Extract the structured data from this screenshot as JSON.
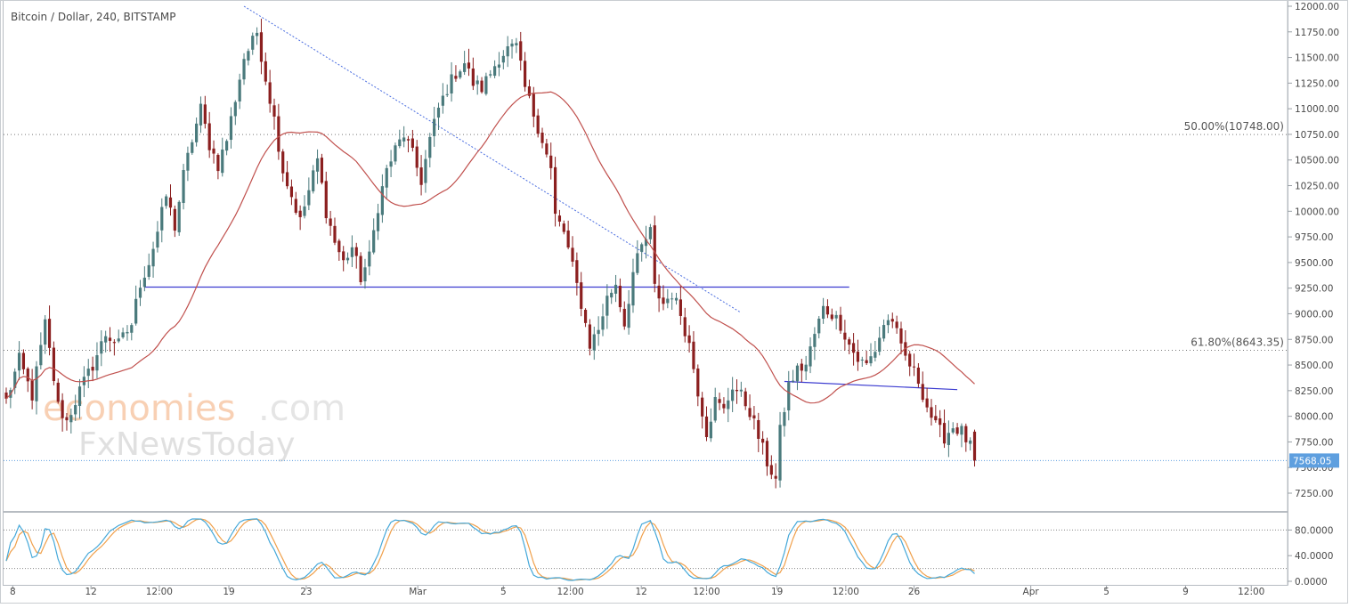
{
  "title": "Bitcoin / Dollar, 240, BITSTAMP",
  "watermark": {
    "brand_main": "economies",
    "brand_tld": ".com",
    "secondary": "FxNewsToday"
  },
  "colors": {
    "bull": "#4a7a7c",
    "bear": "#8b1f1f",
    "ma": "#c0504d",
    "hline": "#3b3bd0",
    "trend": "#4a6de0",
    "fib": "#777777",
    "stoch_k": "#45a8d9",
    "stoch_d": "#f0a04b",
    "price_tag_bg": "#5e9fdf",
    "price_tag_text": "#ffffff"
  },
  "chart_data": {
    "type": "candlestick",
    "title": "Bitcoin / Dollar, 240, BITSTAMP",
    "interval": "240",
    "exchange": "BITSTAMP",
    "y_ticks": [
      "12000.00",
      "11750.00",
      "11500.00",
      "11250.00",
      "11000.00",
      "10750.00",
      "10500.00",
      "10250.00",
      "10000.00",
      "9750.00",
      "9500.00",
      "9250.00",
      "9000.00",
      "8750.00",
      "8500.00",
      "8250.00",
      "8000.00",
      "7750.00",
      "7500.00",
      "7250.00"
    ],
    "ylim": [
      7100,
      12000
    ],
    "last_price": "7568.05",
    "last_price_value": 7568.05,
    "fib_levels": [
      {
        "label": "50.00%(10748.00)",
        "value": 10748.0
      },
      {
        "label": "61.80%(8643.35)",
        "value": 8643.35
      }
    ],
    "support_lines": [
      {
        "price": 9260,
        "from_index": 32,
        "to_index": 195
      },
      {
        "price_start": 8340,
        "price_end": 8260,
        "from_index": 180,
        "to_index": 220
      }
    ],
    "trendline": {
      "from_index": 55,
      "from_price": 12000,
      "to_index": 170,
      "to_price": 9010
    },
    "x_ticks": [
      {
        "label": "8",
        "index": 1.5
      },
      {
        "label": "12",
        "index": 19.6
      },
      {
        "label": "12:00",
        "index": 35.4
      },
      {
        "label": "19",
        "index": 51.5
      },
      {
        "label": "23",
        "index": 69.4
      },
      {
        "label": "Mar",
        "index": 95.2
      },
      {
        "label": "5",
        "index": 115.0
      },
      {
        "label": "12:00",
        "index": 130.5
      },
      {
        "label": "12",
        "index": 146.9
      },
      {
        "label": "12:00",
        "index": 162.0
      },
      {
        "label": "19",
        "index": 178.3
      },
      {
        "label": "12:00",
        "index": 194.2
      },
      {
        "label": "26",
        "index": 210.0
      },
      {
        "label": "Apr",
        "index": 237.0
      },
      {
        "label": "5",
        "index": 254.5
      },
      {
        "label": "9",
        "index": 272.8
      },
      {
        "label": "12:00",
        "index": 288.0
      }
    ],
    "anchors": [
      [
        0,
        8150
      ],
      [
        3,
        8550
      ],
      [
        6,
        8200
      ],
      [
        9,
        8900
      ],
      [
        12,
        8100
      ],
      [
        14,
        7950
      ],
      [
        17,
        8250
      ],
      [
        20,
        8500
      ],
      [
        23,
        8800
      ],
      [
        26,
        8700
      ],
      [
        29,
        8900
      ],
      [
        31,
        9300
      ],
      [
        33,
        9500
      ],
      [
        35,
        9800
      ],
      [
        37,
        10150
      ],
      [
        39,
        9850
      ],
      [
        41,
        10350
      ],
      [
        43,
        10700
      ],
      [
        45,
        11000
      ],
      [
        47,
        10650
      ],
      [
        49,
        10450
      ],
      [
        51,
        10700
      ],
      [
        53,
        11100
      ],
      [
        55,
        11500
      ],
      [
        57,
        11650
      ],
      [
        58,
        11750
      ],
      [
        60,
        11300
      ],
      [
        62,
        10900
      ],
      [
        64,
        10400
      ],
      [
        66,
        10150
      ],
      [
        68,
        9900
      ],
      [
        70,
        10200
      ],
      [
        72,
        10500
      ],
      [
        74,
        10000
      ],
      [
        76,
        9700
      ],
      [
        78,
        9500
      ],
      [
        80,
        9650
      ],
      [
        82,
        9350
      ],
      [
        84,
        9550
      ],
      [
        86,
        10050
      ],
      [
        88,
        10400
      ],
      [
        90,
        10600
      ],
      [
        92,
        10750
      ],
      [
        94,
        10550
      ],
      [
        96,
        10300
      ],
      [
        98,
        10700
      ],
      [
        100,
        11000
      ],
      [
        102,
        11200
      ],
      [
        104,
        11350
      ],
      [
        106,
        11450
      ],
      [
        108,
        11250
      ],
      [
        110,
        11200
      ],
      [
        112,
        11350
      ],
      [
        114,
        11500
      ],
      [
        116,
        11580
      ],
      [
        118,
        11600
      ],
      [
        120,
        11200
      ],
      [
        122,
        10950
      ],
      [
        124,
        10700
      ],
      [
        126,
        10400
      ],
      [
        127,
        9950
      ],
      [
        129,
        9800
      ],
      [
        131,
        9450
      ],
      [
        133,
        9100
      ],
      [
        135,
        8700
      ],
      [
        137,
        8850
      ],
      [
        139,
        9150
      ],
      [
        141,
        9300
      ],
      [
        143,
        8900
      ],
      [
        145,
        9400
      ],
      [
        147,
        9650
      ],
      [
        149,
        9800
      ],
      [
        150,
        9250
      ],
      [
        152,
        9100
      ],
      [
        154,
        9200
      ],
      [
        156,
        9000
      ],
      [
        158,
        8700
      ],
      [
        160,
        8250
      ],
      [
        162,
        7850
      ],
      [
        164,
        8150
      ],
      [
        166,
        8050
      ],
      [
        168,
        8300
      ],
      [
        170,
        8200
      ],
      [
        172,
        8050
      ],
      [
        174,
        7800
      ],
      [
        176,
        7550
      ],
      [
        178,
        7380
      ],
      [
        179,
        7850
      ],
      [
        181,
        8300
      ],
      [
        183,
        8450
      ],
      [
        185,
        8500
      ],
      [
        187,
        8800
      ],
      [
        189,
        9050
      ],
      [
        191,
        9000
      ],
      [
        193,
        8900
      ],
      [
        195,
        8700
      ],
      [
        197,
        8550
      ],
      [
        199,
        8500
      ],
      [
        201,
        8650
      ],
      [
        203,
        8900
      ],
      [
        205,
        8950
      ],
      [
        207,
        8650
      ],
      [
        209,
        8500
      ],
      [
        211,
        8350
      ],
      [
        213,
        8100
      ],
      [
        215,
        7900
      ],
      [
        217,
        7800
      ],
      [
        219,
        7900
      ],
      [
        221,
        7850
      ],
      [
        223,
        7700
      ],
      [
        224,
        7568
      ]
    ],
    "bars_total": 225,
    "ma_period": 30,
    "stochastic": {
      "ticks": [
        "80.0000",
        "40.0000",
        "0.0000"
      ],
      "tick_values": [
        80,
        40,
        0
      ],
      "levels": [
        80,
        20
      ],
      "ylim": [
        -5,
        107
      ]
    }
  }
}
